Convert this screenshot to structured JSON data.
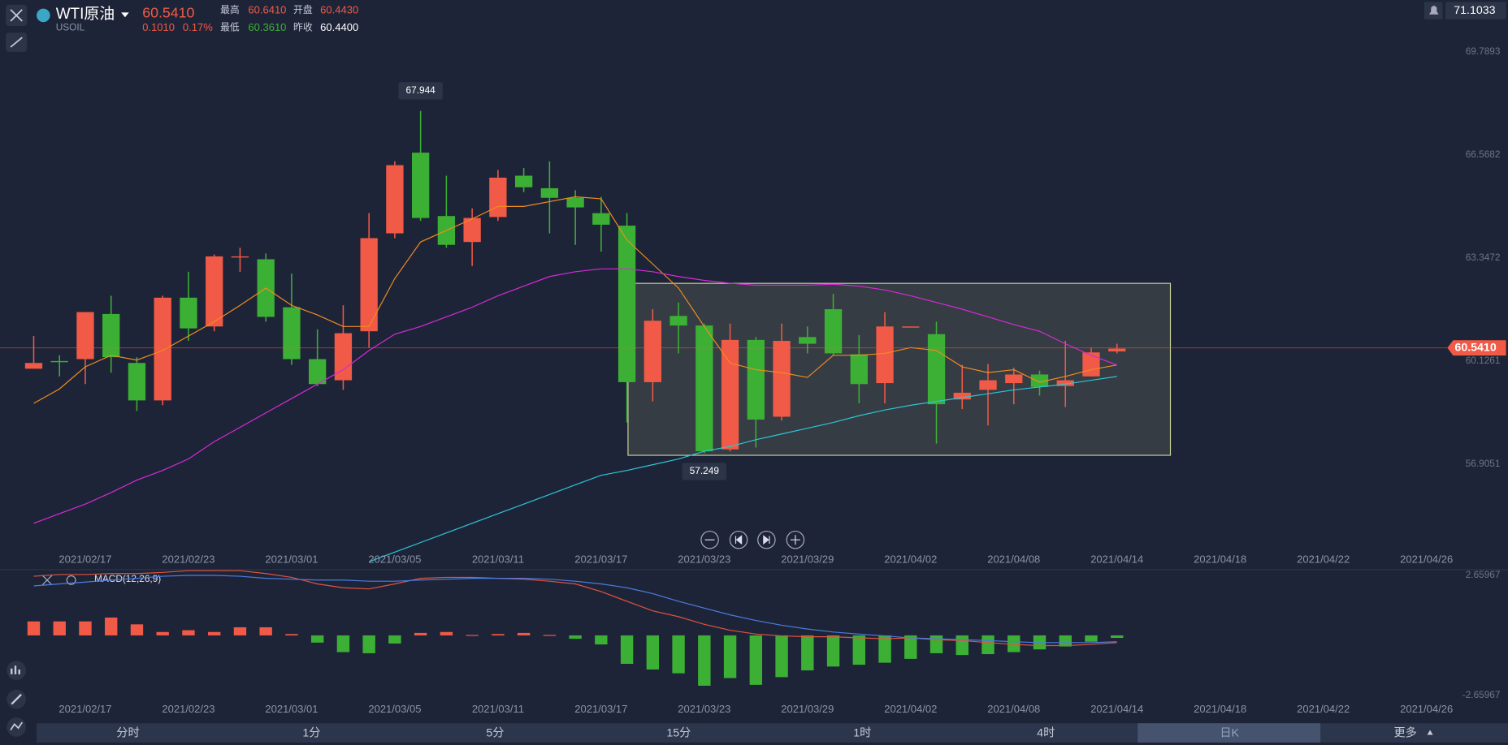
{
  "header": {
    "name": "WTI原油",
    "symbol": "USOIL",
    "price": "60.5410",
    "change": "0.1010",
    "change_pct": "0.17%",
    "high_label": "最高",
    "high": "60.6410",
    "open_label": "开盘",
    "open": "60.4430",
    "low_label": "最低",
    "low": "60.3610",
    "prev_label": "昨收",
    "prev": "60.4400",
    "axis_top": "71.1033"
  },
  "chart_data": {
    "type": "candlestick",
    "up_color": "#f05a46",
    "down_color": "#3cb034",
    "ylim": [
      54.3038,
      71.4105
    ],
    "yticks": [
      69.7893,
      66.5682,
      63.3472,
      60.1261,
      56.9051
    ],
    "xticks": [
      "2021/02/17",
      "2021/02/23",
      "2021/03/01",
      "2021/03/05",
      "2021/03/11",
      "2021/03/17",
      "2021/03/23",
      "2021/03/29",
      "2021/04/02",
      "2021/04/08",
      "2021/04/14",
      "2021/04/18",
      "2021/04/22",
      "2021/04/26"
    ],
    "last_price": {
      "value": 60.541,
      "label": "60.5410"
    },
    "candles": {
      "open": [
        59.89,
        60.13,
        60.19,
        61.6,
        60.07,
        58.9,
        62.11,
        61.21,
        63.37,
        63.31,
        61.81,
        60.19,
        59.53,
        61.06,
        64.12,
        66.64,
        64.66,
        63.85,
        64.63,
        65.92,
        65.53,
        65.23,
        64.75,
        64.36,
        59.47,
        61.54,
        61.24,
        57.37,
        60.79,
        58.39,
        60.88,
        61.75,
        60.34,
        59.44,
        61.18,
        60.97,
        58.93,
        59.23,
        59.44,
        59.71,
        59.35,
        59.65,
        60.43
      ],
      "high": [
        60.91,
        60.31,
        61.66,
        62.17,
        60.25,
        62.17,
        62.92,
        63.46,
        63.67,
        63.49,
        62.86,
        61.12,
        61.87,
        64.75,
        66.37,
        67.944,
        65.92,
        64.9,
        66.1,
        66.16,
        66.37,
        65.47,
        65.26,
        64.75,
        61.75,
        61.96,
        61.3,
        61.3,
        60.88,
        61.3,
        61.21,
        62.23,
        60.94,
        61.66,
        61.21,
        61.36,
        60.01,
        60.04,
        59.92,
        59.83,
        60.76,
        60.55,
        60.67
      ],
      "low": [
        59.89,
        59.65,
        59.41,
        59.77,
        58.57,
        58.75,
        60.76,
        61.06,
        62.92,
        61.36,
        60.01,
        59.35,
        59.23,
        60.55,
        63.97,
        64.51,
        63.67,
        63.1,
        64.51,
        65.41,
        64.12,
        63.76,
        63.55,
        58.21,
        58.87,
        60.37,
        57.249,
        57.31,
        57.43,
        58.27,
        60.37,
        60.31,
        58.81,
        58.81,
        61.18,
        57.55,
        58.63,
        58.12,
        58.78,
        59.05,
        58.69,
        59.65,
        60.37
      ],
      "close": [
        60.07,
        60.1,
        61.66,
        60.25,
        58.9,
        62.11,
        61.15,
        63.4,
        63.4,
        61.51,
        60.19,
        59.41,
        61.0,
        63.97,
        66.25,
        64.6,
        63.76,
        64.6,
        65.86,
        65.56,
        65.23,
        64.93,
        64.39,
        59.47,
        61.39,
        61.24,
        57.31,
        60.79,
        58.3,
        60.76,
        60.67,
        60.37,
        59.41,
        61.21,
        61.21,
        58.78,
        59.14,
        59.53,
        59.71,
        59.32,
        59.53,
        60.4,
        60.52
      ]
    },
    "lines": [
      {
        "color": "#f08c1e",
        "values": [
          58.81,
          59.26,
          59.95,
          60.31,
          60.16,
          60.46,
          60.91,
          61.36,
          61.87,
          62.41,
          61.87,
          61.57,
          61.21,
          61.21,
          62.71,
          63.85,
          64.21,
          64.57,
          64.96,
          64.96,
          65.11,
          65.26,
          65.2,
          63.91,
          63.16,
          62.41,
          61.21,
          60.07,
          59.86,
          59.77,
          59.62,
          60.31,
          60.31,
          60.37,
          60.55,
          60.46,
          59.95,
          59.77,
          59.86,
          59.47,
          59.65,
          59.86,
          60.01
        ]
      },
      {
        "color": "#d62ad6",
        "values": [
          55.06,
          55.36,
          55.66,
          56.02,
          56.41,
          56.71,
          57.07,
          57.61,
          58.06,
          58.51,
          58.96,
          59.41,
          59.86,
          60.46,
          60.97,
          61.21,
          61.51,
          61.81,
          62.17,
          62.47,
          62.77,
          62.92,
          63.01,
          63.01,
          62.92,
          62.77,
          62.65,
          62.56,
          62.5,
          62.5,
          62.5,
          62.53,
          62.47,
          62.35,
          62.17,
          61.96,
          61.75,
          61.51,
          61.27,
          61.06,
          60.67,
          60.31,
          60.01
        ]
      },
      {
        "color": "#2cc6d6",
        "values": [
          null,
          null,
          null,
          null,
          null,
          null,
          null,
          null,
          null,
          null,
          null,
          null,
          null,
          53.86,
          54.16,
          54.46,
          54.76,
          55.06,
          55.36,
          55.66,
          55.96,
          56.26,
          56.56,
          56.71,
          56.89,
          57.07,
          57.31,
          57.46,
          57.67,
          57.85,
          58.03,
          58.21,
          58.42,
          58.6,
          58.75,
          58.87,
          58.99,
          59.11,
          59.23,
          59.32,
          59.41,
          59.53,
          59.65
        ]
      }
    ],
    "macd": {
      "label": "MACD(12,26,9)",
      "ylim": [
        -3.128,
        3.043
      ],
      "yticks": [
        2.65967,
        -2.65967
      ],
      "dif_color": "#e0533d",
      "dea_color": "#4a7de0",
      "histogram": [
        0.62,
        0.62,
        0.62,
        0.79,
        0.49,
        0.15,
        0.23,
        0.15,
        0.36,
        0.36,
        0.06,
        -0.32,
        -0.74,
        -0.79,
        -0.36,
        0.11,
        0.15,
        0.02,
        0.06,
        0.11,
        0.02,
        -0.15,
        -0.4,
        -1.26,
        -1.51,
        -1.68,
        -2.23,
        -1.89,
        -2.19,
        -1.85,
        -1.55,
        -1.38,
        -1.3,
        -1.21,
        -1.04,
        -0.79,
        -0.87,
        -0.83,
        -0.74,
        -0.62,
        -0.49,
        -0.28,
        -0.11
      ],
      "dif": [
        2.62,
        2.7,
        2.7,
        2.74,
        2.74,
        2.79,
        2.87,
        2.87,
        2.87,
        2.74,
        2.57,
        2.28,
        2.11,
        2.06,
        2.28,
        2.53,
        2.57,
        2.57,
        2.53,
        2.49,
        2.4,
        2.28,
        1.94,
        1.51,
        1.09,
        0.83,
        0.49,
        0.23,
        0.06,
        -0.02,
        -0.06,
        -0.06,
        -0.11,
        -0.15,
        -0.11,
        -0.19,
        -0.23,
        -0.32,
        -0.4,
        -0.45,
        -0.45,
        -0.4,
        -0.32
      ],
      "dea": [
        2.19,
        2.28,
        2.36,
        2.45,
        2.53,
        2.62,
        2.66,
        2.66,
        2.62,
        2.53,
        2.49,
        2.45,
        2.45,
        2.4,
        2.4,
        2.45,
        2.49,
        2.53,
        2.53,
        2.53,
        2.49,
        2.4,
        2.28,
        2.11,
        1.85,
        1.51,
        1.21,
        0.91,
        0.66,
        0.45,
        0.28,
        0.15,
        0.06,
        -0.02,
        -0.11,
        -0.15,
        -0.19,
        -0.23,
        -0.28,
        -0.32,
        -0.32,
        -0.32,
        -0.28
      ]
    }
  },
  "timeframes": [
    "分时",
    "1分",
    "5分",
    "15分",
    "1时",
    "4时",
    "日K",
    "更多"
  ]
}
